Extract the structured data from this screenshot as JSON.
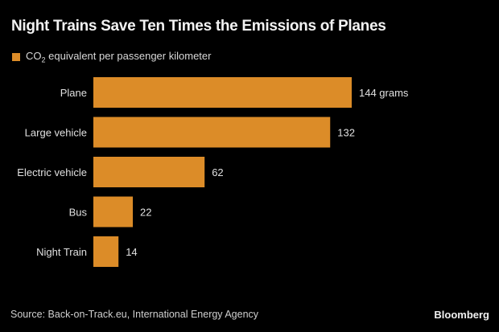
{
  "chart_data": {
    "type": "bar",
    "orientation": "horizontal",
    "title": "Night Trains Save Ten Times the Emissions of Planes",
    "legend": [
      {
        "label_pre": "CO",
        "label_sub": "2",
        "label_post": " equivalent per passenger kilometer",
        "color": "#dc8c28"
      }
    ],
    "legend_position": "top-left",
    "categories": [
      "Plane",
      "Large vehicle",
      "Electric vehicle",
      "Bus",
      "Night Train"
    ],
    "values": [
      144,
      132,
      62,
      22,
      14
    ],
    "data_labels": [
      "144 grams",
      "132",
      "62",
      "22",
      "14"
    ],
    "units": "grams",
    "xlabel": "",
    "ylabel": "",
    "xlim": [
      0,
      144
    ],
    "grid": false,
    "bar_color": "#dc8c28"
  },
  "footer": {
    "source": "Source: Back-on-Track.eu, International Energy Agency",
    "brand": "Bloomberg"
  }
}
